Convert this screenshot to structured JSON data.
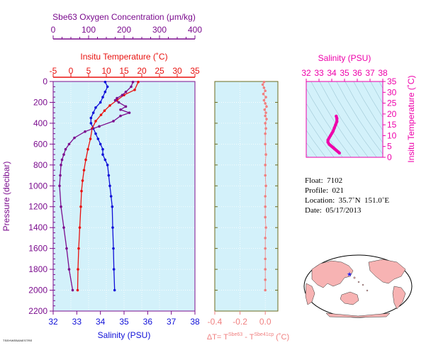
{
  "credit": "TSEHWEBANESTRE",
  "chart_data": [
    {
      "type": "line",
      "name_ref": "main-profile",
      "top_axis_label": "Sbe63 Oxygen Concentration (μm/kg)",
      "mid_axis_label": "Insitu Temperature (˚C)",
      "ylabel": "Pressure (decibar)",
      "xlabel": "Salinity (PSU)",
      "pressure_range": [
        0,
        2200
      ],
      "pressure_ticks": [
        0,
        200,
        400,
        600,
        800,
        1000,
        1200,
        1400,
        1600,
        1800,
        2000,
        2200
      ],
      "oxygen_range": [
        0,
        400
      ],
      "oxygen_ticks": [
        0,
        100,
        200,
        300,
        400
      ],
      "temperature_range": [
        -5,
        35
      ],
      "temperature_ticks": [
        -5,
        0,
        5,
        10,
        15,
        20,
        25,
        30,
        35
      ],
      "salinity_range": [
        32,
        38
      ],
      "salinity_ticks": [
        32,
        33,
        34,
        35,
        36,
        37,
        38
      ],
      "colors": {
        "oxygen": "#7b0c8e",
        "temperature": "#e8110f",
        "salinity": "#1010d8",
        "background": "#d3f1fa"
      },
      "series": [
        {
          "key": "salinity",
          "values": [
            [
              34.2,
              5
            ],
            [
              34.3,
              50
            ],
            [
              34.2,
              100
            ],
            [
              34.1,
              150
            ],
            [
              34.0,
              200
            ],
            [
              33.8,
              250
            ],
            [
              33.7,
              300
            ],
            [
              33.6,
              350
            ],
            [
              33.6,
              400
            ],
            [
              33.7,
              450
            ],
            [
              33.8,
              500
            ],
            [
              33.9,
              550
            ],
            [
              34.0,
              600
            ],
            [
              34.1,
              650
            ],
            [
              34.1,
              700
            ],
            [
              34.2,
              750
            ],
            [
              34.3,
              800
            ],
            [
              34.35,
              900
            ],
            [
              34.4,
              1000
            ],
            [
              34.45,
              1100
            ],
            [
              34.5,
              1200
            ],
            [
              34.52,
              1400
            ],
            [
              34.55,
              1600
            ],
            [
              34.57,
              1800
            ],
            [
              34.6,
              2000
            ]
          ]
        },
        {
          "key": "temperature",
          "values": [
            [
              19.0,
              5
            ],
            [
              18.0,
              80
            ],
            [
              15.0,
              130
            ],
            [
              13.0,
              180
            ],
            [
              11.0,
              230
            ],
            [
              9.5,
              280
            ],
            [
              8.5,
              320
            ],
            [
              7.0,
              380
            ],
            [
              6.0,
              450
            ],
            [
              5.5,
              550
            ],
            [
              4.8,
              650
            ],
            [
              4.2,
              750
            ],
            [
              3.7,
              850
            ],
            [
              3.3,
              950
            ],
            [
              3.0,
              1050
            ],
            [
              2.8,
              1200
            ],
            [
              2.5,
              1400
            ],
            [
              2.2,
              1600
            ],
            [
              2.0,
              1800
            ],
            [
              1.9,
              2000
            ]
          ]
        },
        {
          "key": "oxygen",
          "values": [
            [
              225,
              5
            ],
            [
              220,
              50
            ],
            [
              205,
              100
            ],
            [
              195,
              130
            ],
            [
              180,
              160
            ],
            [
              175,
              180
            ],
            [
              185,
              200
            ],
            [
              205,
              240
            ],
            [
              190,
              270
            ],
            [
              215,
              300
            ],
            [
              190,
              330
            ],
            [
              170,
              380
            ],
            [
              130,
              430
            ],
            [
              90,
              480
            ],
            [
              60,
              540
            ],
            [
              45,
              600
            ],
            [
              35,
              650
            ],
            [
              30,
              700
            ],
            [
              25,
              750
            ],
            [
              22,
              800
            ],
            [
              20,
              900
            ],
            [
              18,
              1000
            ],
            [
              22,
              1200
            ],
            [
              30,
              1400
            ],
            [
              38,
              1600
            ],
            [
              45,
              1800
            ],
            [
              55,
              2000
            ]
          ]
        }
      ]
    },
    {
      "type": "scatter",
      "name_ref": "delta-t",
      "xlabel": "ΔT= T",
      "xlabel_sup1": "Sbe63",
      "xlabel_mid": " - T",
      "xlabel_sup2": "Sbe41cp",
      "xlabel_unit": " (˚C)",
      "x_range": [
        -0.4,
        0.1
      ],
      "x_ticks": [
        -0.4,
        -0.2,
        0.0
      ],
      "x_tick_labels": [
        "-0.4",
        "-0.2",
        "0.0"
      ],
      "color": "#f08080",
      "values": [
        [
          -0.01,
          5
        ],
        [
          -0.02,
          30
        ],
        [
          -0.01,
          60
        ],
        [
          0.0,
          90
        ],
        [
          -0.015,
          120
        ],
        [
          0.005,
          150
        ],
        [
          -0.01,
          180
        ],
        [
          0.0,
          210
        ],
        [
          0.01,
          240
        ],
        [
          -0.005,
          270
        ],
        [
          0.005,
          300
        ],
        [
          0.0,
          330
        ],
        [
          0.01,
          360
        ],
        [
          0.0,
          400
        ],
        [
          0.005,
          450
        ],
        [
          0.0,
          500
        ],
        [
          0.0,
          600
        ],
        [
          0.005,
          700
        ],
        [
          0.0,
          800
        ],
        [
          0.0,
          900
        ],
        [
          0.005,
          1000
        ],
        [
          0.0,
          1100
        ],
        [
          0.0,
          1200
        ],
        [
          0.0,
          1300
        ],
        [
          0.005,
          1400
        ],
        [
          0.0,
          1500
        ],
        [
          0.0,
          1600
        ],
        [
          0.0,
          1700
        ],
        [
          0.0,
          1800
        ],
        [
          0.0,
          1900
        ],
        [
          0.0,
          2000
        ]
      ]
    },
    {
      "type": "scatter",
      "name_ref": "ts-diagram",
      "top_axis_label": "Salinity (PSU)",
      "right_axis_label": "Insitu Temperature (˚C)",
      "x_range": [
        32,
        38
      ],
      "x_ticks": [
        32,
        33,
        34,
        35,
        36,
        37,
        38
      ],
      "y_range": [
        0,
        35
      ],
      "y_ticks": [
        0,
        5,
        10,
        15,
        20,
        25,
        30,
        35
      ],
      "color": "#ee00aa",
      "values": [
        [
          34.6,
          2
        ],
        [
          34.5,
          2.5
        ],
        [
          34.4,
          3
        ],
        [
          34.3,
          3.5
        ],
        [
          34.2,
          4
        ],
        [
          34.1,
          4.5
        ],
        [
          34.0,
          5
        ],
        [
          33.9,
          5.5
        ],
        [
          33.8,
          6
        ],
        [
          33.7,
          7
        ],
        [
          33.7,
          8
        ],
        [
          33.8,
          9
        ],
        [
          33.9,
          10
        ],
        [
          34.0,
          11
        ],
        [
          34.1,
          12
        ],
        [
          34.2,
          13.5
        ],
        [
          34.3,
          15
        ],
        [
          34.4,
          16.5
        ],
        [
          34.4,
          18
        ],
        [
          34.35,
          19
        ]
      ]
    }
  ],
  "info": {
    "float": "Float:  7102",
    "profile": "Profile:  021",
    "location": "Location:  35.7˚N  151.0˚E",
    "date": "Date:  05/17/2013"
  },
  "map": {
    "marker_color": "#2222ee",
    "land_color": "#f7b3b3",
    "ocean_color": "#ffffff"
  }
}
